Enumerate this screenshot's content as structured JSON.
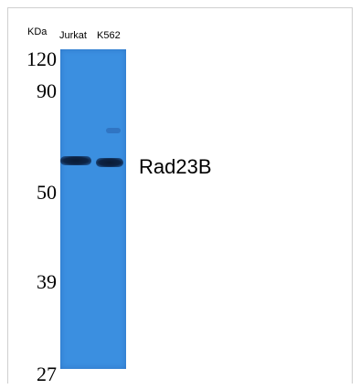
{
  "blot": {
    "unit_label": "KDa",
    "lanes": [
      "Jurkat",
      "K562"
    ],
    "markers": [
      "120",
      "90",
      "50",
      "39",
      "27"
    ],
    "target": "Rad23B",
    "membrane_color": "#3b8fe0"
  }
}
